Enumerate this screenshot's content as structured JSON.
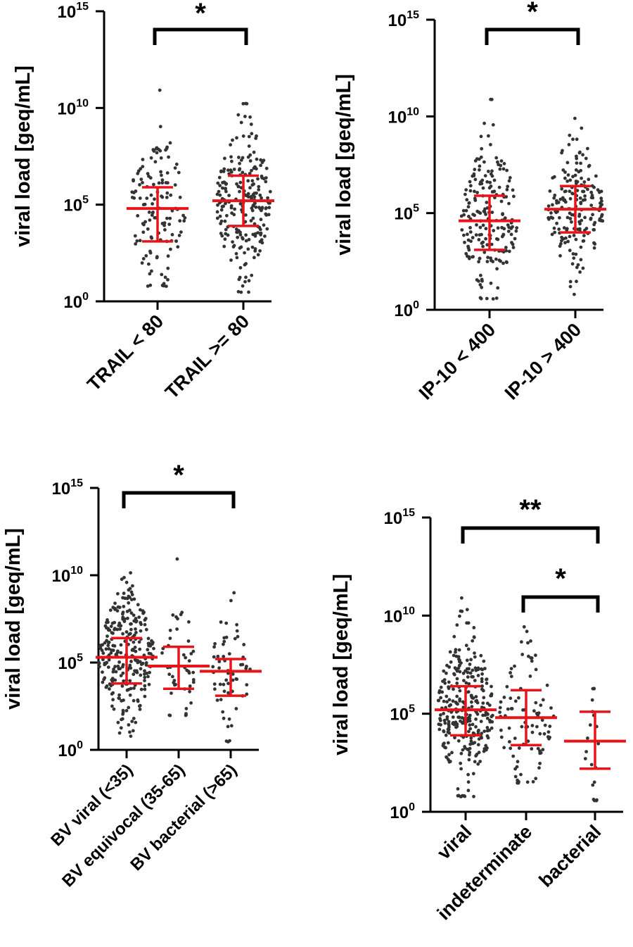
{
  "chart_data": [
    {
      "type": "scatter",
      "ylabel": "viral load [geq/mL]",
      "yscale": "log",
      "ylim_exponents": [
        0,
        15
      ],
      "yticks": [
        {
          "base": "10",
          "exp": "0"
        },
        {
          "base": "10",
          "exp": "5"
        },
        {
          "base": "10",
          "exp": "10"
        },
        {
          "base": "10",
          "exp": "15"
        }
      ],
      "categories": [
        "TRAIL < 80",
        "TRAIL >= 80"
      ],
      "groups": [
        {
          "median_exp": 4.8,
          "q1_exp": 3.1,
          "q3_exp": 5.9,
          "min_exp": 0.8,
          "max_exp": 10.9,
          "n": 130
        },
        {
          "median_exp": 5.2,
          "q1_exp": 3.9,
          "q3_exp": 6.5,
          "min_exp": 0.5,
          "max_exp": 10.2,
          "n": 230
        }
      ],
      "significance": [
        {
          "from": 0,
          "to": 1,
          "label": "*"
        }
      ]
    },
    {
      "type": "scatter",
      "ylabel": "viral load [geq/mL]",
      "yscale": "log",
      "ylim_exponents": [
        0,
        15
      ],
      "yticks": [
        {
          "base": "10",
          "exp": "0"
        },
        {
          "base": "10",
          "exp": "5"
        },
        {
          "base": "10",
          "exp": "10"
        },
        {
          "base": "10",
          "exp": "15"
        }
      ],
      "categories": [
        "IP-10 < 400",
        "IP-10 > 400"
      ],
      "groups": [
        {
          "median_exp": 4.6,
          "q1_exp": 3.1,
          "q3_exp": 5.9,
          "min_exp": 0.6,
          "max_exp": 10.9,
          "n": 200
        },
        {
          "median_exp": 5.2,
          "q1_exp": 4.0,
          "q3_exp": 6.4,
          "min_exp": 0.8,
          "max_exp": 9.9,
          "n": 190
        }
      ],
      "significance": [
        {
          "from": 0,
          "to": 1,
          "label": "*"
        }
      ]
    },
    {
      "type": "scatter",
      "ylabel": "viral load [geq/mL]",
      "yscale": "log",
      "ylim_exponents": [
        0,
        15
      ],
      "yticks": [
        {
          "base": "10",
          "exp": "0"
        },
        {
          "base": "10",
          "exp": "5"
        },
        {
          "base": "10",
          "exp": "10"
        },
        {
          "base": "10",
          "exp": "15"
        }
      ],
      "categories": [
        "BV viral (<35)",
        "BV equivocal (35-65)",
        "BV bacterial (>65)"
      ],
      "groups": [
        {
          "median_exp": 5.3,
          "q1_exp": 3.8,
          "q3_exp": 6.4,
          "min_exp": 0.8,
          "max_exp": 10.1,
          "n": 270
        },
        {
          "median_exp": 4.8,
          "q1_exp": 3.5,
          "q3_exp": 5.9,
          "min_exp": 2.0,
          "max_exp": 10.9,
          "n": 45
        },
        {
          "median_exp": 4.5,
          "q1_exp": 3.1,
          "q3_exp": 5.2,
          "min_exp": 0.5,
          "max_exp": 9.0,
          "n": 60
        }
      ],
      "significance": [
        {
          "from": 0,
          "to": 2,
          "label": "*"
        }
      ]
    },
    {
      "type": "scatter",
      "ylabel": "viral load [geq/mL]",
      "yscale": "log",
      "ylim_exponents": [
        0,
        15
      ],
      "yticks": [
        {
          "base": "10",
          "exp": "0"
        },
        {
          "base": "10",
          "exp": "5"
        },
        {
          "base": "10",
          "exp": "10"
        },
        {
          "base": "10",
          "exp": "15"
        }
      ],
      "categories": [
        "viral",
        "indeterminate",
        "bacterial"
      ],
      "groups": [
        {
          "median_exp": 5.2,
          "q1_exp": 3.9,
          "q3_exp": 6.4,
          "min_exp": 0.8,
          "max_exp": 10.9,
          "n": 300
        },
        {
          "median_exp": 4.8,
          "q1_exp": 3.4,
          "q3_exp": 6.2,
          "min_exp": 1.5,
          "max_exp": 9.4,
          "n": 90
        },
        {
          "median_exp": 3.6,
          "q1_exp": 2.2,
          "q3_exp": 5.1,
          "min_exp": 0.6,
          "max_exp": 6.3,
          "n": 20
        }
      ],
      "significance": [
        {
          "from": 0,
          "to": 2,
          "label": "**"
        },
        {
          "from": 1,
          "to": 2,
          "label": "*"
        }
      ]
    }
  ],
  "colors": {
    "points": "#333333",
    "summary": "#e8141b",
    "axis": "#000000"
  }
}
